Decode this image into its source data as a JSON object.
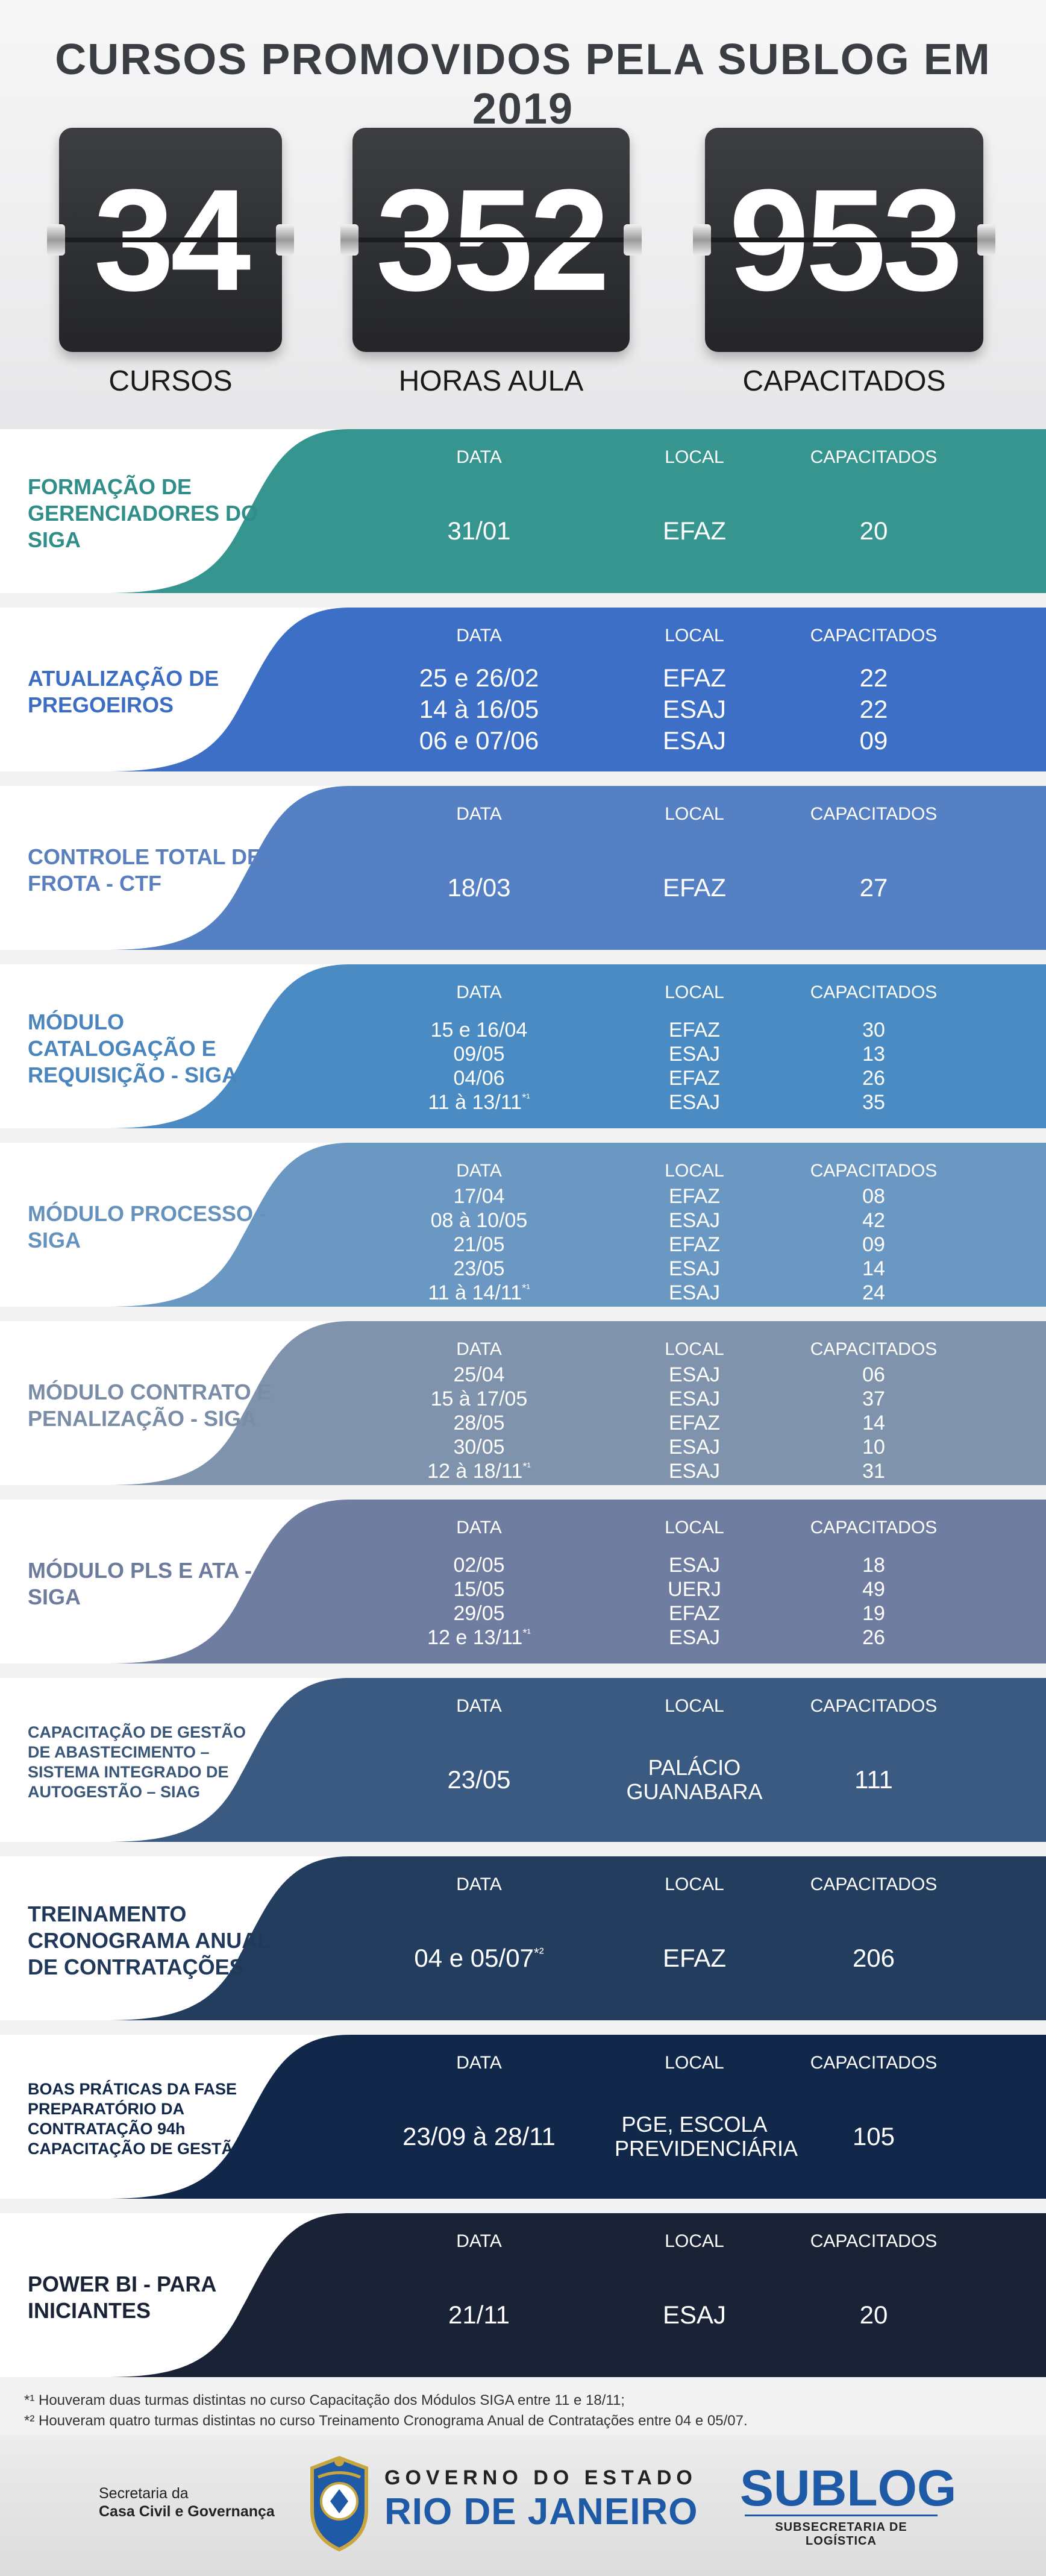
{
  "title": "CURSOS PROMOVIDOS PELA SUBLOG EM 2019",
  "stats": [
    {
      "value": "34",
      "label": "CURSOS"
    },
    {
      "value": "352",
      "label": "HORAS AULA"
    },
    {
      "value": "953",
      "label": "CAPACITADOS"
    }
  ],
  "column_headers": {
    "date": "DATA",
    "local": "LOCAL",
    "capacitados": "CAPACITADOS"
  },
  "courses": [
    {
      "title": "FORMAÇÃO DE GERENCIADORES DO SIGA",
      "color": "#36958f",
      "rows": [
        {
          "date": "31/01",
          "local": "EFAZ",
          "cap": "20"
        }
      ]
    },
    {
      "title": "ATUALIZAÇÃO DE PREGOEIROS",
      "color": "#3d6fc7",
      "rows": [
        {
          "date": "25 e 26/02",
          "local": "EFAZ",
          "cap": "22"
        },
        {
          "date": "14 à 16/05",
          "local": "ESAJ",
          "cap": "22"
        },
        {
          "date": "06 e 07/06",
          "local": "ESAJ",
          "cap": "09"
        }
      ]
    },
    {
      "title": "CONTROLE TOTAL DE FROTA - CTF",
      "color": "#5580c4",
      "rows": [
        {
          "date": "18/03",
          "local": "EFAZ",
          "cap": "27"
        }
      ]
    },
    {
      "title": "MÓDULO CATALOGAÇÃO E REQUISIÇÃO - SIGA",
      "color": "#4a8bc4",
      "rows": [
        {
          "date": "15 e 16/04",
          "local": "EFAZ",
          "cap": "30"
        },
        {
          "date": "09/05",
          "local": "ESAJ",
          "cap": "13"
        },
        {
          "date": "04/06",
          "local": "EFAZ",
          "cap": "26"
        },
        {
          "date": "11 à 13/11",
          "mark": "*¹",
          "local": "ESAJ",
          "cap": "35"
        }
      ]
    },
    {
      "title": "MÓDULO PROCESSO - SIGA",
      "color": "#6b98c2",
      "rows": [
        {
          "date": "17/04",
          "local": "EFAZ",
          "cap": "08"
        },
        {
          "date": "08 à 10/05",
          "local": "ESAJ",
          "cap": "42"
        },
        {
          "date": "21/05",
          "local": "EFAZ",
          "cap": "09"
        },
        {
          "date": "23/05",
          "local": "ESAJ",
          "cap": "14"
        },
        {
          "date": "11 à 14/11",
          "mark": "*¹",
          "local": "ESAJ",
          "cap": "24"
        }
      ]
    },
    {
      "title": "MÓDULO CONTRATO E PENALIZAÇÃO - SIGA",
      "color": "#7f93ad",
      "rows": [
        {
          "date": "25/04",
          "local": "ESAJ",
          "cap": "06"
        },
        {
          "date": "15 à 17/05",
          "local": "ESAJ",
          "cap": "37"
        },
        {
          "date": "28/05",
          "local": "EFAZ",
          "cap": "14"
        },
        {
          "date": "30/05",
          "local": "ESAJ",
          "cap": "10"
        },
        {
          "date": "12 à 18/11",
          "mark": "*¹",
          "local": "ESAJ",
          "cap": "31"
        }
      ]
    },
    {
      "title": "MÓDULO PLS E ATA - SIGA",
      "color": "#6f7ea0",
      "rows": [
        {
          "date": "02/05",
          "local": "ESAJ",
          "cap": "18"
        },
        {
          "date": "15/05",
          "local": "UERJ",
          "cap": "49"
        },
        {
          "date": "29/05",
          "local": "EFAZ",
          "cap": "19"
        },
        {
          "date": "12 e 13/11",
          "mark": "*¹",
          "local": "ESAJ",
          "cap": "26"
        }
      ]
    },
    {
      "title": "CAPACITAÇÃO DE GESTÃO DE ABASTECIMENTO – SISTEMA INTEGRADO DE AUTOGESTÃO – SIAG",
      "color": "#3b5a82",
      "rows": [
        {
          "date": "23/05",
          "local": "PALÁCIO GUANABARA",
          "cap": "111"
        }
      ]
    },
    {
      "title": "TREINAMENTO CRONOGRAMA ANUAL DE CONTRATAÇÕES",
      "color": "#233d5f",
      "rows": [
        {
          "date": "04 e 05/07",
          "mark": "*²",
          "local": "EFAZ",
          "cap": "206"
        }
      ]
    },
    {
      "title": "BOAS PRÁTICAS DA FASE PREPARATÓRIO DA CONTRATAÇÃO 94h CAPACITAÇÃO DE GESTÃO",
      "color": "#12284a",
      "rows": [
        {
          "date": "23/09 à 28/11",
          "local": "PGE, ESCOLA PREVIDENCIÁRIA",
          "cap": "105"
        }
      ]
    },
    {
      "title": "POWER BI - PARA INICIANTES",
      "color": "#1a2236",
      "rows": [
        {
          "date": "21/11",
          "local": "ESAJ",
          "cap": "20"
        }
      ]
    }
  ],
  "footnotes": [
    "*¹ Houveram duas turmas distintas no curso Capacitação dos Módulos SIGA entre 11 e 18/11;",
    "*² Houveram quatro turmas distintas no curso Treinamento Cronograma Anual de Contratações entre 04 e 05/07."
  ],
  "footer": {
    "secretaria_line1": "Secretaria da",
    "secretaria_line2": "Casa Civil e Governança",
    "gov_small": "GOVERNO DO ESTADO",
    "gov_big": "RIO DE JANEIRO",
    "sublog": "SUBLOG",
    "sublog_sub": "SUBSECRETARIA DE LOGÍSTICA"
  }
}
